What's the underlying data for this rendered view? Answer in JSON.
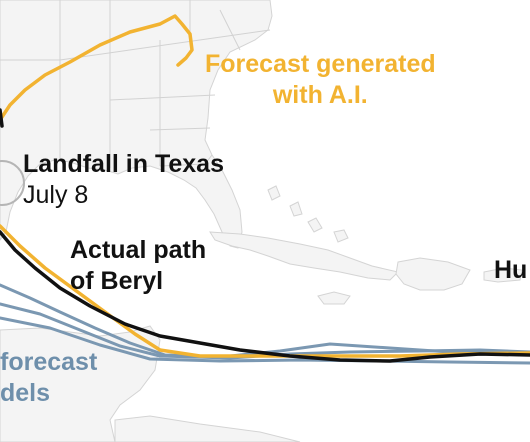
{
  "labels": {
    "ai_forecast_line1": "Forecast generated",
    "ai_forecast_line2": "with A.I.",
    "landfall_title": "Landfall in Texas",
    "landfall_date": "July 8",
    "actual_path_line1": "Actual path",
    "actual_path_line2": "of Beryl",
    "traditional_line1": "forecast",
    "traditional_line2": "dels",
    "hurricane_partial": "Hu"
  },
  "colors": {
    "ai_forecast": "#f2b331",
    "actual_path": "#111111",
    "traditional_models": "#7b98b2",
    "land": "#f4f4f4",
    "borders": "#d2d2d2",
    "water": "#ffffff"
  }
}
